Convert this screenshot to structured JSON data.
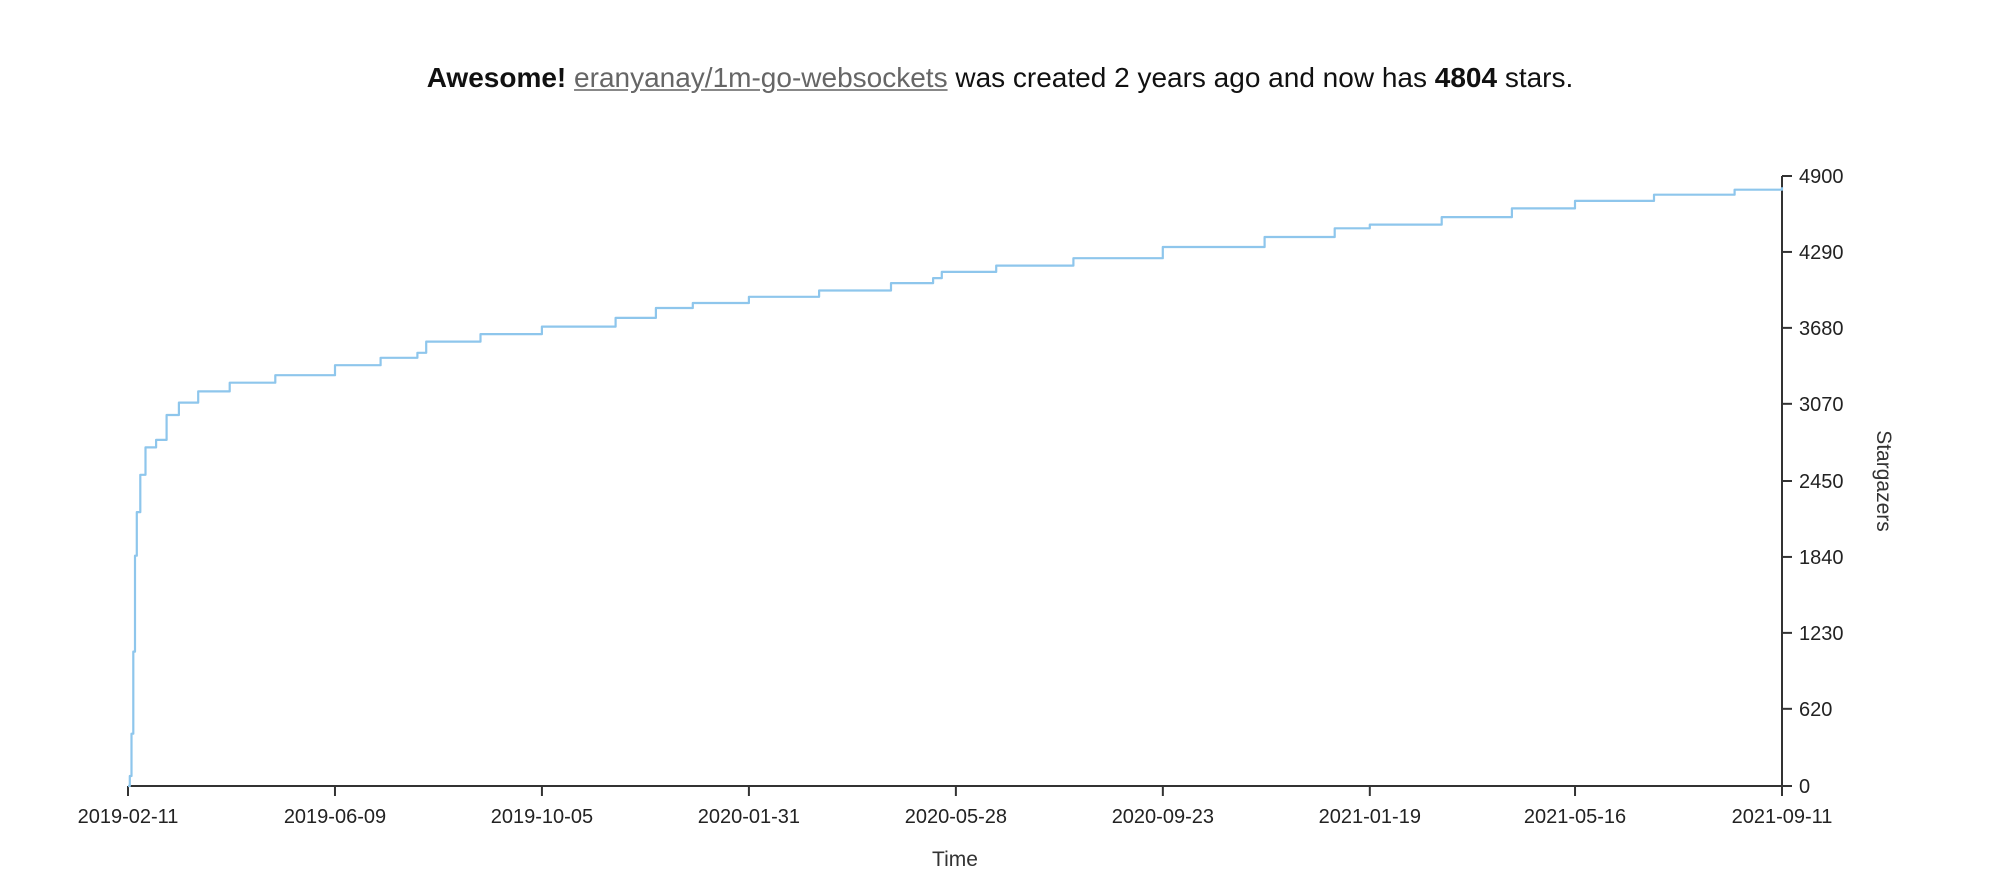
{
  "header": {
    "exclaim": "Awesome!",
    "repo": "eranyanay/1m-go-websockets",
    "middle": " was created 2 years ago and now has ",
    "stars": "4804",
    "end": " stars."
  },
  "colors": {
    "line": "#8ec6ec",
    "axis": "#333333"
  },
  "chart_data": {
    "type": "line",
    "title": "",
    "xlabel": "Time",
    "ylabel": "Stargazers",
    "y_axis_side": "right",
    "grid": false,
    "legend": "none",
    "xlim": [
      "2019-02-11",
      "2021-09-11"
    ],
    "ylim": [
      0,
      4900
    ],
    "x_ticks": [
      "2019-02-11",
      "2019-06-09",
      "2019-10-05",
      "2020-01-31",
      "2020-05-28",
      "2020-09-23",
      "2021-01-19",
      "2021-05-16",
      "2021-09-11"
    ],
    "y_ticks": [
      0,
      620,
      1230,
      1840,
      2450,
      3070,
      3680,
      4290,
      4900
    ],
    "series": [
      {
        "points": [
          [
            "2019-02-11",
            0
          ],
          [
            "2019-02-12",
            80
          ],
          [
            "2019-02-13",
            420
          ],
          [
            "2019-02-14",
            1080
          ],
          [
            "2019-02-15",
            1850
          ],
          [
            "2019-02-16",
            2200
          ],
          [
            "2019-02-18",
            2500
          ],
          [
            "2019-02-21",
            2720
          ],
          [
            "2019-02-27",
            2780
          ],
          [
            "2019-03-05",
            2980
          ],
          [
            "2019-03-12",
            3080
          ],
          [
            "2019-03-23",
            3170
          ],
          [
            "2019-04-10",
            3240
          ],
          [
            "2019-05-06",
            3300
          ],
          [
            "2019-06-09",
            3380
          ],
          [
            "2019-07-05",
            3440
          ],
          [
            "2019-07-26",
            3480
          ],
          [
            "2019-07-31",
            3570
          ],
          [
            "2019-08-31",
            3630
          ],
          [
            "2019-10-05",
            3690
          ],
          [
            "2019-11-16",
            3760
          ],
          [
            "2019-12-09",
            3840
          ],
          [
            "2019-12-30",
            3880
          ],
          [
            "2020-01-31",
            3930
          ],
          [
            "2020-03-11",
            3980
          ],
          [
            "2020-04-21",
            4040
          ],
          [
            "2020-05-15",
            4080
          ],
          [
            "2020-05-20",
            4130
          ],
          [
            "2020-06-20",
            4180
          ],
          [
            "2020-08-03",
            4240
          ],
          [
            "2020-09-23",
            4330
          ],
          [
            "2020-11-20",
            4410
          ],
          [
            "2020-12-30",
            4480
          ],
          [
            "2021-01-19",
            4510
          ],
          [
            "2021-03-01",
            4570
          ],
          [
            "2021-04-10",
            4640
          ],
          [
            "2021-05-16",
            4700
          ],
          [
            "2021-06-30",
            4750
          ],
          [
            "2021-08-15",
            4790
          ],
          [
            "2021-09-11",
            4810
          ]
        ]
      }
    ]
  }
}
